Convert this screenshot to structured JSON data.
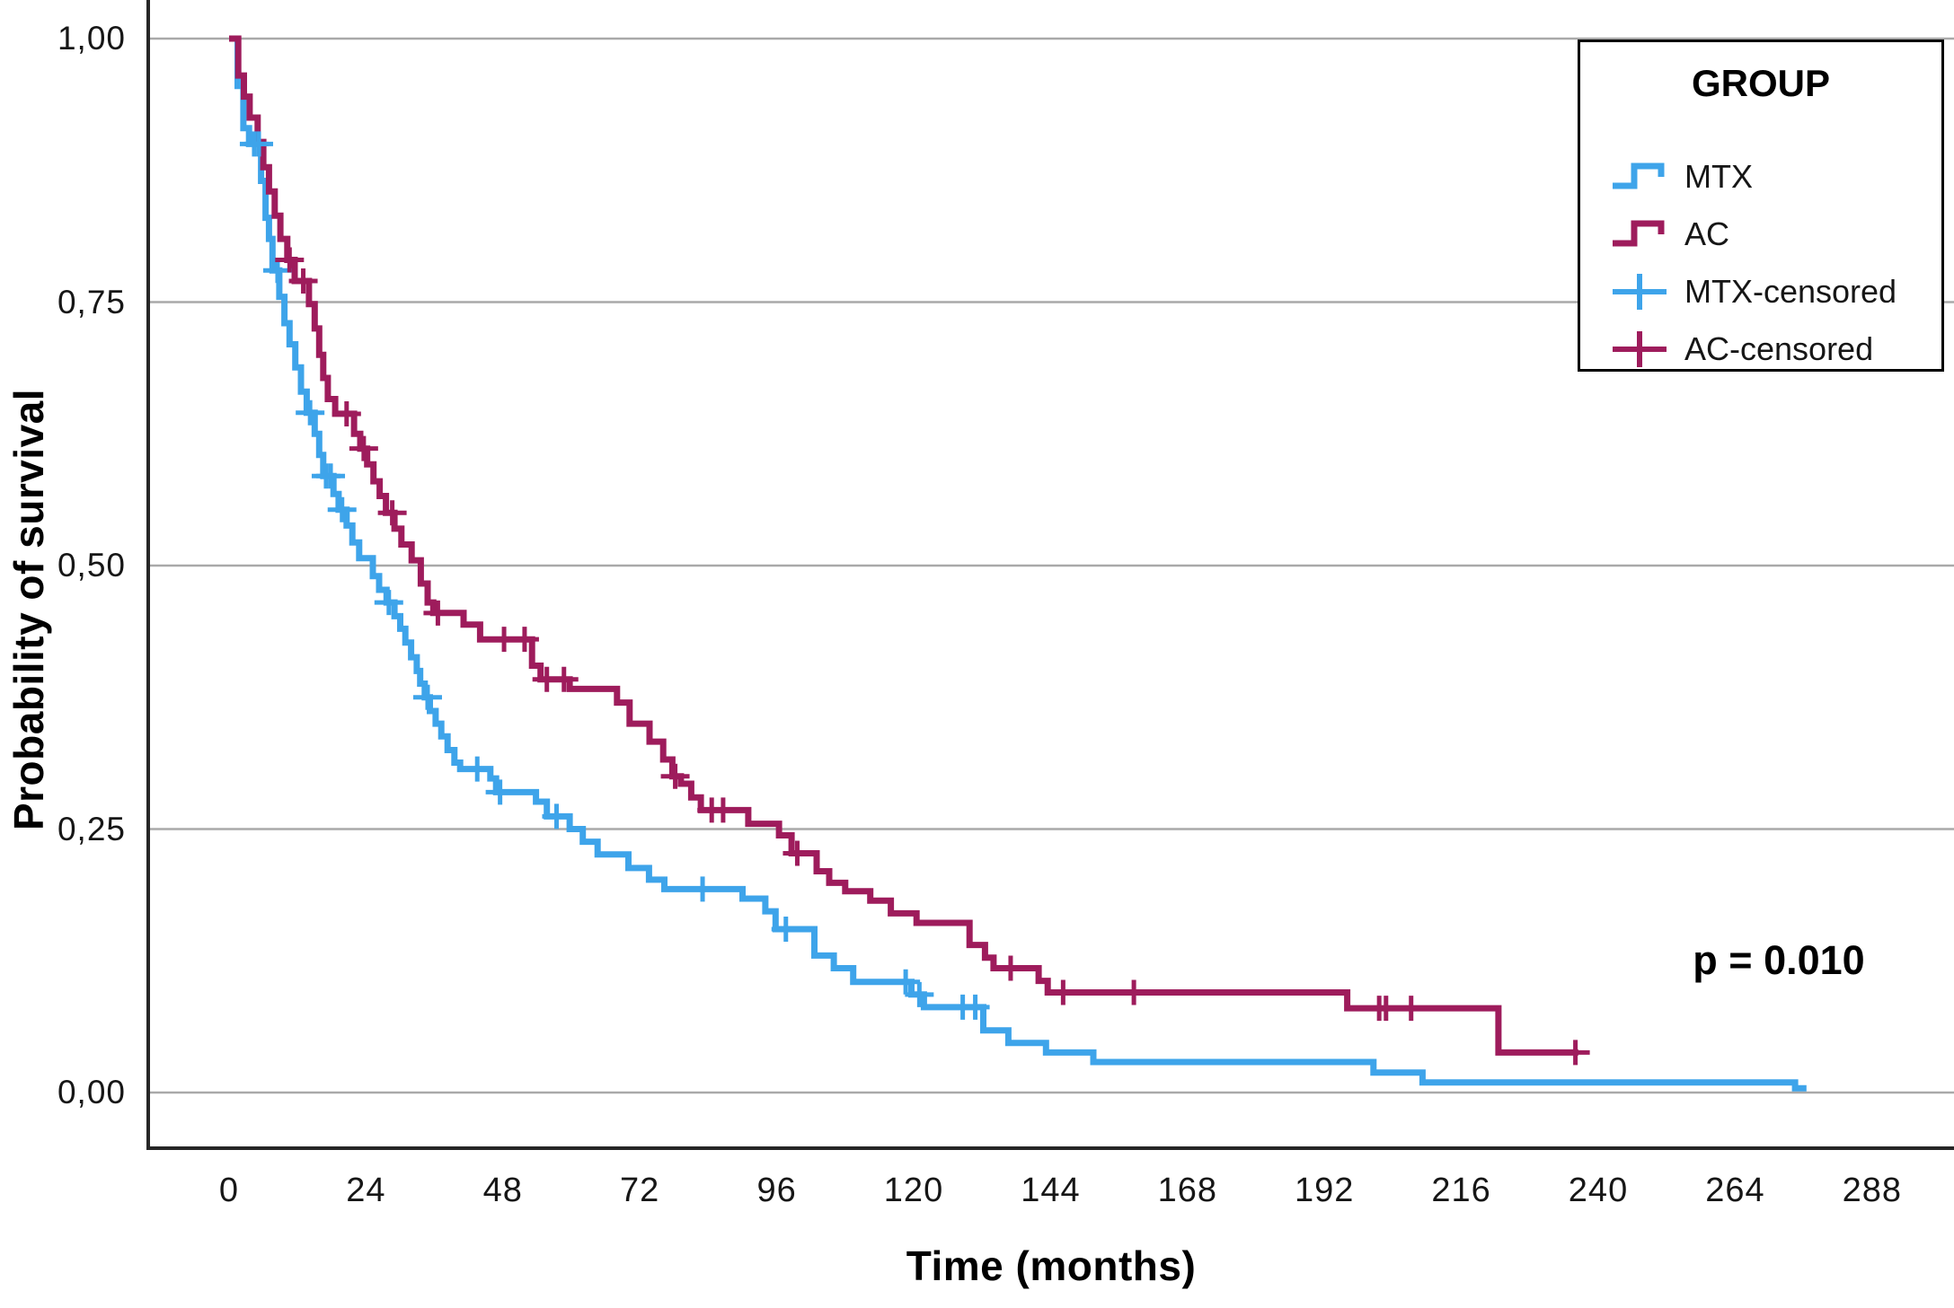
{
  "colors": {
    "mtx": "#3EA4EA",
    "ac": "#9E1C5C",
    "grid": "#A9A9A9",
    "axis": "#262626",
    "text": "#000000"
  },
  "y_axis": {
    "title": "Probability of survival",
    "tick_labels": [
      "1,00",
      "0,75",
      "0,50",
      "0,25",
      "0,00"
    ],
    "tick_values": [
      1.0,
      0.75,
      0.5,
      0.25,
      0.0
    ]
  },
  "x_axis": {
    "title": "Time (months)",
    "tick_labels": [
      "0",
      "24",
      "48",
      "72",
      "96",
      "120",
      "144",
      "168",
      "192",
      "216",
      "240",
      "264",
      "288"
    ],
    "tick_values": [
      0,
      24,
      48,
      72,
      96,
      120,
      144,
      168,
      192,
      216,
      240,
      264,
      288
    ]
  },
  "legend": {
    "title": "GROUP",
    "items": [
      {
        "label": "MTX",
        "type": "step",
        "color_key": "mtx"
      },
      {
        "label": "AC",
        "type": "step",
        "color_key": "ac"
      },
      {
        "label": "MTX-censored",
        "type": "plus",
        "color_key": "mtx"
      },
      {
        "label": "AC-censored",
        "type": "plus",
        "color_key": "ac"
      }
    ]
  },
  "annotation": {
    "p_value": "p = 0.010"
  },
  "chart_data": {
    "type": "line",
    "subtype": "kaplan-meier-step",
    "title": "",
    "xlabel": "Time (months)",
    "ylabel": "Probability of survival",
    "xlim": [
      0,
      302
    ],
    "ylim": [
      0,
      1
    ],
    "grid": "horizontal",
    "legend_position": "top-right",
    "p_value_text": "p = 0.010",
    "series": [
      {
        "name": "MTX",
        "color_key": "mtx",
        "end_time": 276.5,
        "steps": [
          [
            0,
            1.0
          ],
          [
            1.5,
            0.955
          ],
          [
            2.5,
            0.915
          ],
          [
            3.5,
            0.9
          ],
          [
            5.6,
            0.865
          ],
          [
            6.4,
            0.83
          ],
          [
            7.0,
            0.81
          ],
          [
            7.6,
            0.78
          ],
          [
            8.8,
            0.755
          ],
          [
            9.7,
            0.73
          ],
          [
            10.6,
            0.71
          ],
          [
            11.6,
            0.688
          ],
          [
            12.6,
            0.665
          ],
          [
            13.6,
            0.645
          ],
          [
            15.0,
            0.625
          ],
          [
            15.8,
            0.605
          ],
          [
            16.5,
            0.585
          ],
          [
            18.3,
            0.568
          ],
          [
            19.2,
            0.553
          ],
          [
            20.6,
            0.538
          ],
          [
            21.6,
            0.522
          ],
          [
            22.8,
            0.507
          ],
          [
            25.2,
            0.49
          ],
          [
            26.3,
            0.477
          ],
          [
            27.6,
            0.465
          ],
          [
            29.0,
            0.452
          ],
          [
            30.0,
            0.44
          ],
          [
            30.9,
            0.427
          ],
          [
            31.9,
            0.413
          ],
          [
            32.9,
            0.4
          ],
          [
            33.5,
            0.388
          ],
          [
            34.3,
            0.375
          ],
          [
            35.2,
            0.362
          ],
          [
            36.2,
            0.35
          ],
          [
            37.2,
            0.338
          ],
          [
            38.3,
            0.325
          ],
          [
            39.5,
            0.313
          ],
          [
            40.5,
            0.307
          ],
          [
            45.8,
            0.298
          ],
          [
            46.8,
            0.285
          ],
          [
            53.8,
            0.276
          ],
          [
            55.7,
            0.262
          ],
          [
            59.7,
            0.25
          ],
          [
            62.0,
            0.238
          ],
          [
            64.6,
            0.226
          ],
          [
            70.0,
            0.213
          ],
          [
            73.6,
            0.202
          ],
          [
            76.3,
            0.193
          ],
          [
            90.0,
            0.184
          ],
          [
            94.0,
            0.172
          ],
          [
            95.8,
            0.155
          ],
          [
            102.6,
            0.13
          ],
          [
            106.0,
            0.118
          ],
          [
            109.4,
            0.105
          ],
          [
            119.6,
            0.093
          ],
          [
            121.8,
            0.081
          ],
          [
            132.2,
            0.059
          ],
          [
            136.6,
            0.047
          ],
          [
            143.2,
            0.038
          ],
          [
            151.5,
            0.029
          ],
          [
            200.6,
            0.019
          ],
          [
            209.2,
            0.0095
          ],
          [
            274.5,
            0.004
          ]
        ],
        "censored": [
          [
            4.4,
            0.9
          ],
          [
            5.2,
            0.9
          ],
          [
            8.5,
            0.78
          ],
          [
            14.2,
            0.645
          ],
          [
            17.0,
            0.585
          ],
          [
            17.8,
            0.585
          ],
          [
            19.8,
            0.553
          ],
          [
            28.0,
            0.465
          ],
          [
            34.8,
            0.375
          ],
          [
            43.5,
            0.307
          ],
          [
            47.5,
            0.285
          ],
          [
            57.4,
            0.262
          ],
          [
            83.0,
            0.193
          ],
          [
            97.6,
            0.155
          ],
          [
            118.6,
            0.105
          ],
          [
            121.0,
            0.093
          ],
          [
            128.6,
            0.081
          ],
          [
            130.8,
            0.081
          ]
        ]
      },
      {
        "name": "AC",
        "color_key": "ac",
        "end_time": 236.5,
        "steps": [
          [
            0,
            1.0
          ],
          [
            1.6,
            0.965
          ],
          [
            2.6,
            0.945
          ],
          [
            3.6,
            0.925
          ],
          [
            5.0,
            0.902
          ],
          [
            6.0,
            0.878
          ],
          [
            7.0,
            0.855
          ],
          [
            8.0,
            0.832
          ],
          [
            9.0,
            0.81
          ],
          [
            10.2,
            0.79
          ],
          [
            11.5,
            0.77
          ],
          [
            14.0,
            0.748
          ],
          [
            15.0,
            0.725
          ],
          [
            15.8,
            0.7
          ],
          [
            16.5,
            0.678
          ],
          [
            17.3,
            0.658
          ],
          [
            18.6,
            0.644
          ],
          [
            21.9,
            0.625
          ],
          [
            23.0,
            0.611
          ],
          [
            24.2,
            0.596
          ],
          [
            25.3,
            0.58
          ],
          [
            26.4,
            0.566
          ],
          [
            27.5,
            0.55
          ],
          [
            29.0,
            0.535
          ],
          [
            30.2,
            0.52
          ],
          [
            32.0,
            0.505
          ],
          [
            33.6,
            0.483
          ],
          [
            34.8,
            0.465
          ],
          [
            35.8,
            0.455
          ],
          [
            41.1,
            0.444
          ],
          [
            44.0,
            0.43
          ],
          [
            53.1,
            0.405
          ],
          [
            54.6,
            0.392
          ],
          [
            59.7,
            0.383
          ],
          [
            68.0,
            0.37
          ],
          [
            70.2,
            0.35
          ],
          [
            73.7,
            0.333
          ],
          [
            76.1,
            0.316
          ],
          [
            77.7,
            0.3
          ],
          [
            79.2,
            0.293
          ],
          [
            81.0,
            0.28
          ],
          [
            82.7,
            0.268
          ],
          [
            91.0,
            0.255
          ],
          [
            96.4,
            0.244
          ],
          [
            98.6,
            0.227
          ],
          [
            103.0,
            0.21
          ],
          [
            105.2,
            0.199
          ],
          [
            108.0,
            0.191
          ],
          [
            112.4,
            0.182
          ],
          [
            116.0,
            0.17
          ],
          [
            120.5,
            0.161
          ],
          [
            129.8,
            0.14
          ],
          [
            132.5,
            0.128
          ],
          [
            134.0,
            0.118
          ],
          [
            141.9,
            0.106
          ],
          [
            143.5,
            0.095
          ],
          [
            196.0,
            0.08
          ],
          [
            222.5,
            0.038
          ]
        ],
        "censored": [
          [
            10.6,
            0.79
          ],
          [
            13.0,
            0.77
          ],
          [
            20.6,
            0.644
          ],
          [
            23.6,
            0.611
          ],
          [
            28.6,
            0.55
          ],
          [
            36.6,
            0.455
          ],
          [
            48.2,
            0.43
          ],
          [
            51.8,
            0.43
          ],
          [
            55.7,
            0.392
          ],
          [
            58.7,
            0.392
          ],
          [
            78.2,
            0.3
          ],
          [
            84.6,
            0.268
          ],
          [
            86.6,
            0.268
          ],
          [
            99.6,
            0.227
          ],
          [
            137.0,
            0.118
          ],
          [
            146.2,
            0.095
          ],
          [
            158.6,
            0.095
          ],
          [
            201.6,
            0.08
          ],
          [
            202.8,
            0.08
          ],
          [
            207.2,
            0.08
          ],
          [
            236.0,
            0.038
          ]
        ]
      }
    ]
  }
}
